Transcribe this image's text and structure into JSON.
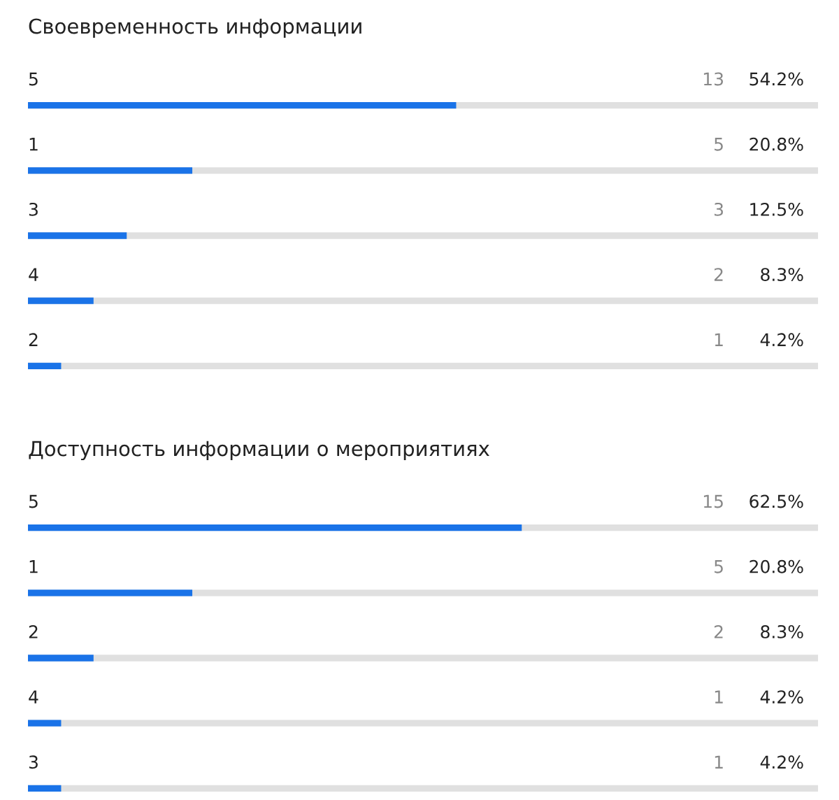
{
  "chart_data": [
    {
      "type": "bar",
      "orientation": "horizontal",
      "title": "Своевременность информации",
      "categories": [
        "5",
        "1",
        "3",
        "4",
        "2"
      ],
      "annotations": [
        "13",
        "5",
        "3",
        "2",
        "1"
      ],
      "series": [
        {
          "color": "#1a73e8",
          "values": [
            54.2,
            20.8,
            12.5,
            8.3,
            4.2
          ],
          "value_labels": [
            "54.2%",
            "20.8%",
            "12.5%",
            "8.3%",
            "4.2%"
          ]
        }
      ]
    },
    {
      "type": "bar",
      "orientation": "horizontal",
      "title": "Доступность информации о мероприятиях",
      "categories": [
        "5",
        "1",
        "2",
        "4",
        "3"
      ],
      "annotations": [
        "15",
        "5",
        "2",
        "1",
        "1"
      ],
      "series": [
        {
          "color": "#1a73e8",
          "values": [
            62.5,
            20.8,
            8.3,
            4.2,
            4.2
          ],
          "value_labels": [
            "62.5%",
            "20.8%",
            "8.3%",
            "4.2%",
            "4.2%"
          ]
        }
      ]
    }
  ]
}
